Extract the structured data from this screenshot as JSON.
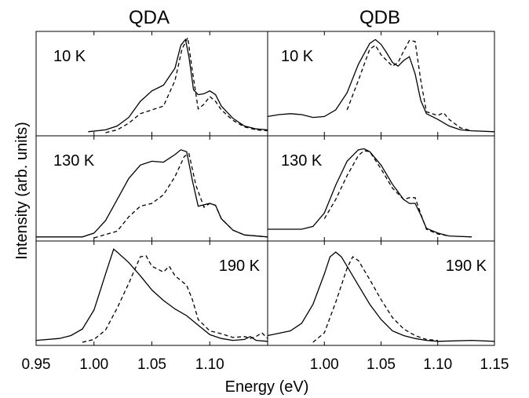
{
  "chart_data": {
    "type": "line",
    "ylabel": "Intensity (arb. units)",
    "xlabel": "Energy (eV)",
    "columns": [
      {
        "title": "QDA",
        "xlim": [
          0.95,
          1.15
        ],
        "ticks": [
          "0.95",
          "1.00",
          "1.05",
          "1.10"
        ],
        "tick_values": [
          0.95,
          1.0,
          1.05,
          1.1
        ],
        "panels": [
          {
            "label": "10 K",
            "label_position": "top-left",
            "solid": [
              [
                0.995,
                0.01
              ],
              [
                1.01,
                0.03
              ],
              [
                1.02,
                0.07
              ],
              [
                1.03,
                0.16
              ],
              [
                1.04,
                0.33
              ],
              [
                1.05,
                0.44
              ],
              [
                1.06,
                0.5
              ],
              [
                1.07,
                0.68
              ],
              [
                1.075,
                0.92
              ],
              [
                1.079,
                0.98
              ],
              [
                1.082,
                0.8
              ],
              [
                1.086,
                0.45
              ],
              [
                1.09,
                0.4
              ],
              [
                1.095,
                0.41
              ],
              [
                1.1,
                0.44
              ],
              [
                1.105,
                0.4
              ],
              [
                1.11,
                0.28
              ],
              [
                1.12,
                0.15
              ],
              [
                1.13,
                0.07
              ],
              [
                1.14,
                0.04
              ],
              [
                1.15,
                0.03
              ]
            ],
            "dashed": [
              [
                1.01,
                0.0
              ],
              [
                1.02,
                0.03
              ],
              [
                1.03,
                0.1
              ],
              [
                1.04,
                0.2
              ],
              [
                1.05,
                0.24
              ],
              [
                1.06,
                0.28
              ],
              [
                1.07,
                0.55
              ],
              [
                1.076,
                0.88
              ],
              [
                1.081,
                1.0
              ],
              [
                1.085,
                0.65
              ],
              [
                1.09,
                0.25
              ],
              [
                1.095,
                0.3
              ],
              [
                1.1,
                0.38
              ],
              [
                1.105,
                0.33
              ],
              [
                1.11,
                0.24
              ],
              [
                1.12,
                0.13
              ],
              [
                1.13,
                0.06
              ],
              [
                1.14,
                0.03
              ],
              [
                1.15,
                0.02
              ]
            ]
          },
          {
            "label": "130 K",
            "label_position": "top-left",
            "solid": [
              [
                0.95,
                0.01
              ],
              [
                0.99,
                0.01
              ],
              [
                1.0,
                0.05
              ],
              [
                1.01,
                0.18
              ],
              [
                1.02,
                0.4
              ],
              [
                1.03,
                0.62
              ],
              [
                1.04,
                0.76
              ],
              [
                1.05,
                0.8
              ],
              [
                1.06,
                0.79
              ],
              [
                1.07,
                0.87
              ],
              [
                1.075,
                0.92
              ],
              [
                1.08,
                0.9
              ],
              [
                1.085,
                0.6
              ],
              [
                1.09,
                0.33
              ],
              [
                1.1,
                0.36
              ],
              [
                1.105,
                0.34
              ],
              [
                1.11,
                0.2
              ],
              [
                1.12,
                0.08
              ],
              [
                1.13,
                0.03
              ],
              [
                1.15,
                0.01
              ]
            ],
            "dashed": [
              [
                1.0,
                0.0
              ],
              [
                1.02,
                0.07
              ],
              [
                1.03,
                0.22
              ],
              [
                1.04,
                0.33
              ],
              [
                1.05,
                0.36
              ],
              [
                1.06,
                0.45
              ],
              [
                1.07,
                0.64
              ],
              [
                1.078,
                0.85
              ],
              [
                1.082,
                0.88
              ],
              [
                1.088,
                0.55
              ],
              [
                1.095,
                0.32
              ],
              [
                1.1,
                0.36
              ],
              [
                1.105,
                0.34
              ],
              [
                1.11,
                0.2
              ],
              [
                1.12,
                0.08
              ],
              [
                1.13,
                0.03
              ],
              [
                1.15,
                0.01
              ]
            ]
          },
          {
            "label": "190 K",
            "label_position": "top-right",
            "solid": [
              [
                0.95,
                0.02
              ],
              [
                0.97,
                0.04
              ],
              [
                0.98,
                0.07
              ],
              [
                0.99,
                0.14
              ],
              [
                1.0,
                0.34
              ],
              [
                1.01,
                0.72
              ],
              [
                1.017,
                0.98
              ],
              [
                1.02,
                0.95
              ],
              [
                1.03,
                0.84
              ],
              [
                1.04,
                0.7
              ],
              [
                1.05,
                0.55
              ],
              [
                1.06,
                0.44
              ],
              [
                1.07,
                0.35
              ],
              [
                1.08,
                0.28
              ],
              [
                1.09,
                0.18
              ],
              [
                1.1,
                0.08
              ],
              [
                1.11,
                0.04
              ],
              [
                1.12,
                0.02
              ],
              [
                1.13,
                0.03
              ],
              [
                1.135,
                0.06
              ],
              [
                1.14,
                0.02
              ],
              [
                1.15,
                0.01
              ]
            ],
            "dashed": [
              [
                0.99,
                0.0
              ],
              [
                1.0,
                0.03
              ],
              [
                1.01,
                0.13
              ],
              [
                1.02,
                0.36
              ],
              [
                1.03,
                0.62
              ],
              [
                1.04,
                0.9
              ],
              [
                1.045,
                0.91
              ],
              [
                1.05,
                0.8
              ],
              [
                1.06,
                0.74
              ],
              [
                1.065,
                0.8
              ],
              [
                1.07,
                0.7
              ],
              [
                1.08,
                0.6
              ],
              [
                1.085,
                0.45
              ],
              [
                1.09,
                0.24
              ],
              [
                1.1,
                0.12
              ],
              [
                1.11,
                0.09
              ],
              [
                1.12,
                0.05
              ],
              [
                1.13,
                0.06
              ],
              [
                1.135,
                0.04
              ],
              [
                1.14,
                0.06
              ],
              [
                1.145,
                0.1
              ],
              [
                1.15,
                0.04
              ]
            ]
          }
        ]
      },
      {
        "title": "QDB",
        "xlim": [
          0.95,
          1.15
        ],
        "ticks": [
          "1.00",
          "1.05",
          "1.10",
          "1.15"
        ],
        "tick_values": [
          1.0,
          1.05,
          1.1,
          1.15
        ],
        "panels": [
          {
            "label": "10 K",
            "label_position": "top-left",
            "solid": [
              [
                0.95,
                0.17
              ],
              [
                0.96,
                0.19
              ],
              [
                0.97,
                0.2
              ],
              [
                0.98,
                0.19
              ],
              [
                0.99,
                0.16
              ],
              [
                1.0,
                0.17
              ],
              [
                1.01,
                0.24
              ],
              [
                1.02,
                0.42
              ],
              [
                1.03,
                0.72
              ],
              [
                1.04,
                0.94
              ],
              [
                1.045,
                0.98
              ],
              [
                1.05,
                0.93
              ],
              [
                1.055,
                0.84
              ],
              [
                1.06,
                0.74
              ],
              [
                1.065,
                0.7
              ],
              [
                1.07,
                0.76
              ],
              [
                1.075,
                0.8
              ],
              [
                1.08,
                0.62
              ],
              [
                1.085,
                0.34
              ],
              [
                1.09,
                0.2
              ],
              [
                1.1,
                0.14
              ],
              [
                1.11,
                0.07
              ],
              [
                1.12,
                0.03
              ],
              [
                1.13,
                0.02
              ],
              [
                1.15,
                0.01
              ]
            ],
            "dashed": [
              [
                1.02,
                0.24
              ],
              [
                1.03,
                0.55
              ],
              [
                1.04,
                0.88
              ],
              [
                1.045,
                0.92
              ],
              [
                1.05,
                0.82
              ],
              [
                1.06,
                0.7
              ],
              [
                1.065,
                0.74
              ],
              [
                1.07,
                0.86
              ],
              [
                1.075,
                0.97
              ],
              [
                1.08,
                0.96
              ],
              [
                1.085,
                0.55
              ],
              [
                1.09,
                0.22
              ],
              [
                1.1,
                0.18
              ],
              [
                1.105,
                0.21
              ],
              [
                1.11,
                0.14
              ],
              [
                1.12,
                0.05
              ],
              [
                1.13,
                0.02
              ]
            ]
          },
          {
            "label": "130 K",
            "label_position": "top-left",
            "solid": [
              [
                0.95,
                0.09
              ],
              [
                0.97,
                0.09
              ],
              [
                0.98,
                0.09
              ],
              [
                0.99,
                0.12
              ],
              [
                1.0,
                0.26
              ],
              [
                1.01,
                0.55
              ],
              [
                1.02,
                0.8
              ],
              [
                1.03,
                0.92
              ],
              [
                1.035,
                0.93
              ],
              [
                1.04,
                0.9
              ],
              [
                1.05,
                0.76
              ],
              [
                1.06,
                0.56
              ],
              [
                1.07,
                0.4
              ],
              [
                1.075,
                0.36
              ],
              [
                1.08,
                0.36
              ],
              [
                1.085,
                0.24
              ],
              [
                1.09,
                0.1
              ],
              [
                1.1,
                0.05
              ],
              [
                1.11,
                0.02
              ],
              [
                1.13,
                0.01
              ]
            ],
            "dashed": [
              [
                1.0,
                0.2
              ],
              [
                1.01,
                0.4
              ],
              [
                1.02,
                0.65
              ],
              [
                1.03,
                0.86
              ],
              [
                1.035,
                0.91
              ],
              [
                1.04,
                0.9
              ],
              [
                1.05,
                0.72
              ],
              [
                1.06,
                0.52
              ],
              [
                1.07,
                0.4
              ],
              [
                1.075,
                0.42
              ],
              [
                1.08,
                0.42
              ],
              [
                1.085,
                0.25
              ],
              [
                1.09,
                0.09
              ],
              [
                1.1,
                0.04
              ],
              [
                1.11,
                0.02
              ]
            ]
          },
          {
            "label": "190 K",
            "label_position": "top-right",
            "solid": [
              [
                0.95,
                0.07
              ],
              [
                0.97,
                0.12
              ],
              [
                0.98,
                0.2
              ],
              [
                0.99,
                0.4
              ],
              [
                1.0,
                0.72
              ],
              [
                1.005,
                0.9
              ],
              [
                1.01,
                0.95
              ],
              [
                1.015,
                0.9
              ],
              [
                1.02,
                0.8
              ],
              [
                1.03,
                0.6
              ],
              [
                1.04,
                0.4
              ],
              [
                1.05,
                0.24
              ],
              [
                1.06,
                0.12
              ],
              [
                1.07,
                0.07
              ],
              [
                1.08,
                0.04
              ],
              [
                1.09,
                0.02
              ],
              [
                1.1,
                0.01
              ],
              [
                1.13,
                0.02
              ],
              [
                1.15,
                0.01
              ]
            ],
            "dashed": [
              [
                0.99,
                0.0
              ],
              [
                1.0,
                0.1
              ],
              [
                1.01,
                0.42
              ],
              [
                1.02,
                0.78
              ],
              [
                1.025,
                0.9
              ],
              [
                1.03,
                0.86
              ],
              [
                1.04,
                0.66
              ],
              [
                1.05,
                0.45
              ],
              [
                1.06,
                0.26
              ],
              [
                1.07,
                0.14
              ],
              [
                1.08,
                0.07
              ],
              [
                1.09,
                0.03
              ],
              [
                1.1,
                0.02
              ]
            ]
          }
        ]
      }
    ]
  }
}
